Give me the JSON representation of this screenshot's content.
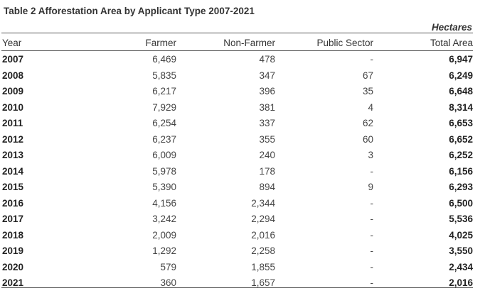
{
  "title": "Table 2 Afforestation Area by Applicant Type 2007-2021",
  "unit": "Hectares",
  "columns": {
    "year": "Year",
    "farmer": "Farmer",
    "non_farmer": "Non-Farmer",
    "public_sector": "Public Sector",
    "total": "Total Area"
  },
  "rows": [
    {
      "year": "2007",
      "farmer": "6,469",
      "non_farmer": "478",
      "public_sector": "-",
      "total": "6,947"
    },
    {
      "year": "2008",
      "farmer": "5,835",
      "non_farmer": "347",
      "public_sector": "67",
      "total": "6,249"
    },
    {
      "year": "2009",
      "farmer": "6,217",
      "non_farmer": "396",
      "public_sector": "35",
      "total": "6,648"
    },
    {
      "year": "2010",
      "farmer": "7,929",
      "non_farmer": "381",
      "public_sector": "4",
      "total": "8,314"
    },
    {
      "year": "2011",
      "farmer": "6,254",
      "non_farmer": "337",
      "public_sector": "62",
      "total": "6,653"
    },
    {
      "year": "2012",
      "farmer": "6,237",
      "non_farmer": "355",
      "public_sector": "60",
      "total": "6,652"
    },
    {
      "year": "2013",
      "farmer": "6,009",
      "non_farmer": "240",
      "public_sector": "3",
      "total": "6,252"
    },
    {
      "year": "2014",
      "farmer": "5,978",
      "non_farmer": "178",
      "public_sector": "-",
      "total": "6,156"
    },
    {
      "year": "2015",
      "farmer": "5,390",
      "non_farmer": "894",
      "public_sector": "9",
      "total": "6,293"
    },
    {
      "year": "2016",
      "farmer": "4,156",
      "non_farmer": "2,344",
      "public_sector": "-",
      "total": "6,500"
    },
    {
      "year": "2017",
      "farmer": "3,242",
      "non_farmer": "2,294",
      "public_sector": "-",
      "total": "5,536"
    },
    {
      "year": "2018",
      "farmer": "2,009",
      "non_farmer": "2,016",
      "public_sector": "-",
      "total": "4,025"
    },
    {
      "year": "2019",
      "farmer": "1,292",
      "non_farmer": "2,258",
      "public_sector": "-",
      "total": "3,550"
    },
    {
      "year": "2020",
      "farmer": "579",
      "non_farmer": "1,855",
      "public_sector": "-",
      "total": "2,434"
    },
    {
      "year": "2021",
      "farmer": "360",
      "non_farmer": "1,657",
      "public_sector": "-",
      "total": "2,016"
    }
  ]
}
